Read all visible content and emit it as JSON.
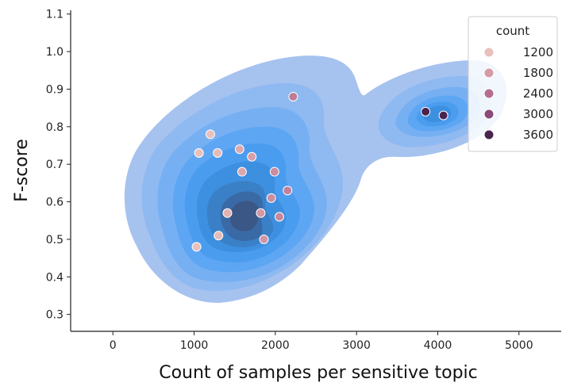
{
  "chart_data": {
    "type": "scatter",
    "title": "",
    "xlabel": "Count of samples per sensitive topic",
    "ylabel": "F-score",
    "xlim": [
      -520,
      5520
    ],
    "ylim": [
      0.255,
      1.11
    ],
    "xticks": [
      0,
      1000,
      2000,
      3000,
      4000,
      5000
    ],
    "xtick_labels": [
      "0",
      "1000",
      "2000",
      "3000",
      "4000",
      "5000"
    ],
    "yticks": [
      0.3,
      0.4,
      0.5,
      0.6,
      0.7,
      0.8,
      0.9,
      1.0,
      1.1
    ],
    "ytick_labels": [
      "0.3",
      "0.4",
      "0.5",
      "0.6",
      "0.7",
      "0.8",
      "0.9",
      "1.0",
      "1.1"
    ],
    "grid": false,
    "background_layer": "kernel density estimate contours (blue, filled)",
    "legend": {
      "title": "count",
      "placement": "top-right",
      "entries": [
        {
          "label": "1200",
          "color": "#e8c1bc"
        },
        {
          "label": "1800",
          "color": "#d49aa6"
        },
        {
          "label": "2400",
          "color": "#b56f8e"
        },
        {
          "label": "3000",
          "color": "#8a4a7a"
        },
        {
          "label": "3600",
          "color": "#4a2450"
        }
      ]
    },
    "points": [
      {
        "x": 1030,
        "y": 0.48,
        "count": 1030
      },
      {
        "x": 1060,
        "y": 0.73,
        "count": 1060
      },
      {
        "x": 1200,
        "y": 0.78,
        "count": 1200
      },
      {
        "x": 1290,
        "y": 0.73,
        "count": 1290
      },
      {
        "x": 1300,
        "y": 0.51,
        "count": 1300
      },
      {
        "x": 1410,
        "y": 0.57,
        "count": 1410
      },
      {
        "x": 1560,
        "y": 0.74,
        "count": 1560
      },
      {
        "x": 1590,
        "y": 0.68,
        "count": 1590
      },
      {
        "x": 1710,
        "y": 0.72,
        "count": 1710
      },
      {
        "x": 1820,
        "y": 0.57,
        "count": 1820
      },
      {
        "x": 1860,
        "y": 0.5,
        "count": 1860
      },
      {
        "x": 1950,
        "y": 0.61,
        "count": 1950
      },
      {
        "x": 1990,
        "y": 0.68,
        "count": 1990
      },
      {
        "x": 2050,
        "y": 0.56,
        "count": 2050
      },
      {
        "x": 2150,
        "y": 0.63,
        "count": 2150
      },
      {
        "x": 2220,
        "y": 0.88,
        "count": 2220
      },
      {
        "x": 3850,
        "y": 0.84,
        "count": 3850
      },
      {
        "x": 4070,
        "y": 0.83,
        "count": 4070
      }
    ]
  }
}
